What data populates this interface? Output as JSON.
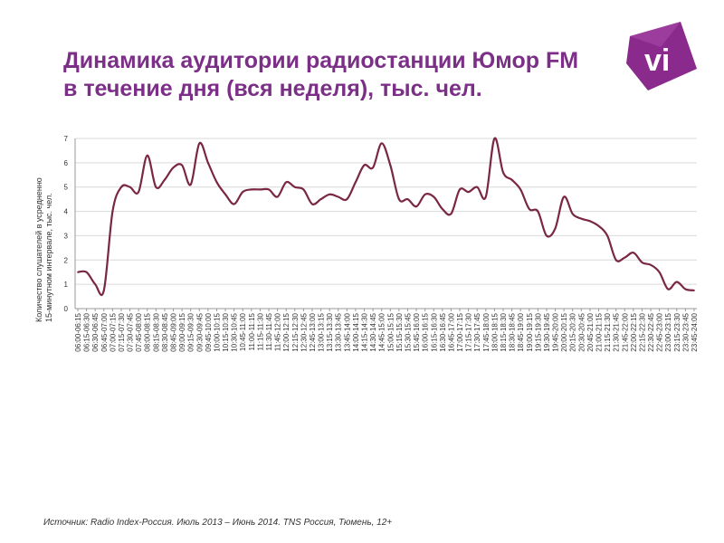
{
  "title": "Динамика аудитории радиостанции Юмор FM в течение дня (вся неделя), тыс. чел.",
  "logo_text": "vi",
  "source": "Источник: Radio Index-Россия. Июль 2013 – Июнь 2014. TNS Россия, Тюмень, 12+",
  "colors": {
    "title": "#7b2f86",
    "line": "#7a2742",
    "logo": "#8a2a8c",
    "grid": "#d9d9d9"
  },
  "chart_data": {
    "type": "line",
    "title": "",
    "xlabel": "",
    "ylabel_line1": "Количество слушателей в усредненно",
    "ylabel_line2": "15-минутном интервале, тыс. чел.",
    "ylim": [
      0,
      7
    ],
    "yticks": [
      "0",
      "1",
      "2",
      "3",
      "4",
      "5",
      "6",
      "7"
    ],
    "grid": true,
    "x_tick_labels": [
      "06:00-06:15",
      "06:15-06:30",
      "06:30-06:45",
      "06:45-07:00",
      "07:00-07:15",
      "07:15-07:30",
      "07:30-07:45",
      "07:45-08:00",
      "08:00-08:15",
      "08:15-08:30",
      "08:30-08:45",
      "08:45-09:00",
      "09:00-09:15",
      "09:15-09:30",
      "09:30-09:45",
      "09:45-10:00",
      "10:00-10:15",
      "10:15-10:30",
      "10:30-10:45",
      "10:45-11:00",
      "11:00-11:15",
      "11:15-11:30",
      "11:30-11:45",
      "11:45-12:00",
      "12:00-12:15",
      "12:15-12:30",
      "12:30-12:45",
      "12:45-13:00",
      "13:00-13:15",
      "13:15-13:30",
      "13:30-13:45",
      "13:45-14:00",
      "14:00-14:15",
      "14:15-14:30",
      "14:30-14:45",
      "14:45-15:00",
      "15:00-15:15",
      "15:15-15:30",
      "15:30-15:45",
      "15:45-16:00",
      "16:00-16:15",
      "16:15-16:30",
      "16:30-16:45",
      "16:45-17:00",
      "17:00-17:15",
      "17:15-17:30",
      "17:30-17:45",
      "17:45-18:00",
      "18:00-18:15",
      "18:15-18:30",
      "18:30-18:45",
      "18:45-19:00",
      "19:00-19:15",
      "19:15-19:30",
      "19:30-19:45",
      "19:45-20:00",
      "20:00-20:15",
      "20:15-20:30",
      "20:30-20:45",
      "20:45-21:00",
      "21:00-21:15",
      "21:15-21:30",
      "21:30-21:45",
      "21:45-22:00",
      "22:00-22:15",
      "22:15-22:30",
      "22:30-22:45",
      "22:45-23:00",
      "23:00-23:15",
      "23:15-23:30",
      "23:30-23:45",
      "23:45-24:00"
    ],
    "values": [
      1.5,
      1.5,
      1.0,
      0.75,
      4.0,
      5.0,
      5.0,
      4.8,
      6.3,
      5.0,
      5.3,
      5.8,
      5.9,
      5.1,
      6.8,
      6.0,
      5.2,
      4.7,
      4.3,
      4.8,
      4.9,
      4.9,
      4.9,
      4.6,
      5.2,
      5.0,
      4.9,
      4.3,
      4.5,
      4.7,
      4.6,
      4.5,
      5.2,
      5.9,
      5.8,
      6.8,
      5.9,
      4.5,
      4.5,
      4.2,
      4.7,
      4.6,
      4.1,
      3.9,
      4.9,
      4.8,
      5.0,
      4.6,
      7.0,
      5.6,
      5.3,
      4.9,
      4.1,
      4.0,
      3.0,
      3.3,
      4.6,
      3.9,
      3.7,
      3.6,
      3.4,
      3.0,
      2.0,
      2.1,
      2.3,
      1.9,
      1.8,
      1.5,
      0.8,
      1.1,
      0.8,
      0.75
    ]
  }
}
